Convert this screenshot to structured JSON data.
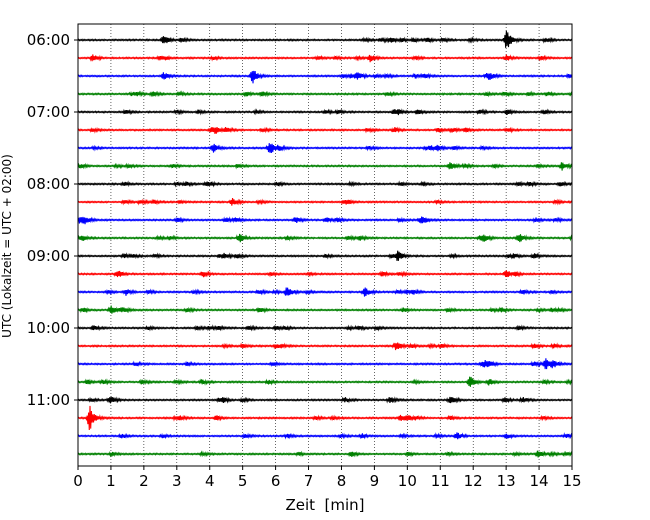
{
  "chart_data": {
    "type": "line",
    "title": "",
    "xlabel": "Zeit  [min]",
    "ylabel": "UTC (Lokalzeit = UTC + 02:00)",
    "xlim": [
      0,
      15
    ],
    "x_ticks": [
      "0",
      "1",
      "2",
      "3",
      "4",
      "5",
      "6",
      "7",
      "8",
      "9",
      "10",
      "11",
      "12",
      "13",
      "14",
      "15"
    ],
    "y_ticks": [
      {
        "label": "06:00",
        "row": 0
      },
      {
        "label": "07:00",
        "row": 4
      },
      {
        "label": "08:00",
        "row": 8
      },
      {
        "label": "09:00",
        "row": 12
      },
      {
        "label": "10:00",
        "row": 16
      },
      {
        "label": "11:00",
        "row": 20
      }
    ],
    "grid": "vertical dotted at each minute",
    "colors": [
      "#000000",
      "#ff0000",
      "#0000ff",
      "#008000"
    ],
    "series": [
      {
        "start": "06:00",
        "color": "#000000",
        "events": [
          {
            "t": 2.6,
            "amp": 0.28
          },
          {
            "t": 9.2,
            "amp": 0.22
          },
          {
            "t": 13.0,
            "amp": 0.85
          },
          {
            "t": 14.2,
            "amp": 0.22
          }
        ]
      },
      {
        "start": "06:15",
        "color": "#ff0000",
        "events": [
          {
            "t": 0.45,
            "amp": 0.35
          },
          {
            "t": 13.0,
            "amp": 0.3
          }
        ]
      },
      {
        "start": "06:30",
        "color": "#0000ff",
        "events": [
          {
            "t": 2.6,
            "amp": 0.35
          },
          {
            "t": 5.3,
            "amp": 0.75
          },
          {
            "t": 12.5,
            "amp": 0.25
          }
        ]
      },
      {
        "start": "06:45",
        "color": "#008000",
        "events": [
          {
            "t": 5.1,
            "amp": 0.2
          },
          {
            "t": 9.4,
            "amp": 0.18
          }
        ]
      },
      {
        "start": "07:00",
        "color": "#000000",
        "events": [
          {
            "t": 3.0,
            "amp": 0.18
          },
          {
            "t": 7.9,
            "amp": 0.18
          }
        ]
      },
      {
        "start": "07:15",
        "color": "#ff0000",
        "events": [
          {
            "t": 4.5,
            "amp": 0.25
          },
          {
            "t": 9.6,
            "amp": 0.25
          }
        ]
      },
      {
        "start": "07:30",
        "color": "#0000ff",
        "events": [
          {
            "t": 4.1,
            "amp": 0.25
          },
          {
            "t": 5.8,
            "amp": 0.45
          }
        ]
      },
      {
        "start": "07:45",
        "color": "#008000",
        "events": [
          {
            "t": 14.7,
            "amp": 0.4
          }
        ]
      },
      {
        "start": "08:00",
        "color": "#000000",
        "events": [
          {
            "t": 1.4,
            "amp": 0.2
          },
          {
            "t": 3.0,
            "amp": 0.15
          }
        ]
      },
      {
        "start": "08:15",
        "color": "#ff0000",
        "events": [
          {
            "t": 5.5,
            "amp": 0.15
          }
        ]
      },
      {
        "start": "08:30",
        "color": "#0000ff",
        "events": [
          {
            "t": 0.2,
            "amp": 0.28
          },
          {
            "t": 4.5,
            "amp": 0.2
          },
          {
            "t": 6.6,
            "amp": 0.3
          },
          {
            "t": 14.5,
            "amp": 0.2
          }
        ]
      },
      {
        "start": "08:45",
        "color": "#008000",
        "events": [
          {
            "t": 0.1,
            "amp": 0.35
          },
          {
            "t": 4.9,
            "amp": 0.45
          },
          {
            "t": 8.2,
            "amp": 0.22
          },
          {
            "t": 12.2,
            "amp": 0.2
          }
        ]
      },
      {
        "start": "09:00",
        "color": "#000000",
        "events": [
          {
            "t": 1.4,
            "amp": 0.2
          },
          {
            "t": 4.3,
            "amp": 0.18
          },
          {
            "t": 9.7,
            "amp": 0.5
          }
        ]
      },
      {
        "start": "09:15",
        "color": "#ff0000",
        "events": [
          {
            "t": 3.8,
            "amp": 0.15
          }
        ]
      },
      {
        "start": "09:30",
        "color": "#0000ff",
        "events": [
          {
            "t": 1.45,
            "amp": 0.35
          },
          {
            "t": 6.35,
            "amp": 0.6
          },
          {
            "t": 8.7,
            "amp": 0.5
          },
          {
            "t": 13.5,
            "amp": 0.25
          }
        ]
      },
      {
        "start": "09:45",
        "color": "#008000",
        "events": [
          {
            "t": 1.0,
            "amp": 0.4
          },
          {
            "t": 3.3,
            "amp": 0.2
          },
          {
            "t": 5.5,
            "amp": 0.25
          }
        ]
      },
      {
        "start": "10:00",
        "color": "#000000",
        "events": [
          {
            "t": 4.0,
            "amp": 0.18
          },
          {
            "t": 6.3,
            "amp": 0.15
          }
        ]
      },
      {
        "start": "10:15",
        "color": "#ff0000",
        "events": [
          {
            "t": 5.0,
            "amp": 0.18
          },
          {
            "t": 9.7,
            "amp": 0.15
          }
        ]
      },
      {
        "start": "10:30",
        "color": "#0000ff",
        "events": [
          {
            "t": 14.2,
            "amp": 0.6
          }
        ]
      },
      {
        "start": "10:45",
        "color": "#008000",
        "events": [
          {
            "t": 3.0,
            "amp": 0.18
          },
          {
            "t": 11.9,
            "amp": 0.55
          }
        ]
      },
      {
        "start": "11:00",
        "color": "#000000",
        "events": [
          {
            "t": 5.0,
            "amp": 0.18
          },
          {
            "t": 8.1,
            "amp": 0.25
          },
          {
            "t": 13.5,
            "amp": 0.28
          }
        ]
      },
      {
        "start": "11:15",
        "color": "#ff0000",
        "events": [
          {
            "t": 0.35,
            "amp": 1.25
          },
          {
            "t": 9.8,
            "amp": 0.28
          }
        ]
      },
      {
        "start": "11:30",
        "color": "#0000ff",
        "events": [
          {
            "t": 11.5,
            "amp": 0.35
          }
        ]
      },
      {
        "start": "11:45",
        "color": "#008000",
        "events": [
          {
            "t": 8.3,
            "amp": 0.25
          }
        ]
      }
    ]
  }
}
